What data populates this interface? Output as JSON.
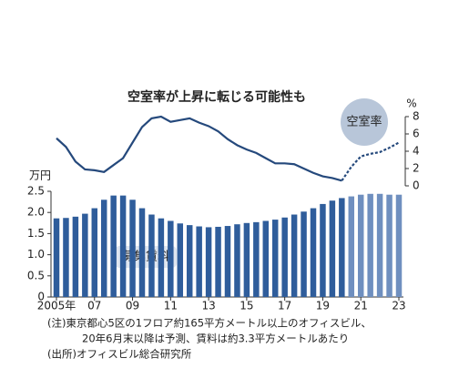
{
  "chart_data": [
    {
      "type": "line",
      "title": "空室率が上昇に転じる可能性も",
      "annotation": "空室率",
      "y_label": "%",
      "x": [
        2005,
        2005.5,
        2006,
        2006.5,
        2007,
        2007.5,
        2008,
        2008.5,
        2009,
        2009.5,
        2010,
        2010.5,
        2011,
        2011.5,
        2012,
        2012.5,
        2013,
        2013.5,
        2014,
        2014.5,
        2015,
        2015.5,
        2016,
        2016.5,
        2017,
        2017.5,
        2018,
        2018.5,
        2019,
        2019.5,
        2020,
        2020.5,
        2021,
        2021.5,
        2022,
        2022.5,
        2023
      ],
      "values": [
        5.5,
        4.5,
        2.8,
        1.9,
        1.8,
        1.6,
        2.4,
        3.2,
        5.0,
        6.8,
        7.8,
        8.0,
        7.4,
        7.6,
        7.8,
        7.3,
        6.9,
        6.3,
        5.4,
        4.7,
        4.2,
        3.8,
        3.2,
        2.6,
        2.6,
        2.5,
        2.0,
        1.5,
        1.1,
        0.9,
        0.6,
        2.2,
        3.4,
        3.7,
        3.9,
        4.4,
        5.0
      ],
      "forecast_from": 2020.5,
      "color": "#25497c",
      "xlim": [
        2005,
        2023
      ],
      "ylim": [
        0,
        8
      ],
      "yticks": [
        0,
        2,
        4,
        6,
        8
      ]
    },
    {
      "type": "bar",
      "annotation": "募集賃料",
      "y_label": "万円",
      "x": [
        2005,
        2005.5,
        2006,
        2006.5,
        2007,
        2007.5,
        2008,
        2008.5,
        2009,
        2009.5,
        2010,
        2010.5,
        2011,
        2011.5,
        2012,
        2012.5,
        2013,
        2013.5,
        2014,
        2014.5,
        2015,
        2015.5,
        2016,
        2016.5,
        2017,
        2017.5,
        2018,
        2018.5,
        2019,
        2019.5,
        2020,
        2020.5,
        2021,
        2021.5,
        2022,
        2022.5,
        2023
      ],
      "values": [
        1.86,
        1.87,
        1.9,
        1.97,
        2.1,
        2.3,
        2.4,
        2.4,
        2.3,
        2.1,
        1.95,
        1.86,
        1.8,
        1.74,
        1.7,
        1.67,
        1.65,
        1.66,
        1.68,
        1.72,
        1.75,
        1.77,
        1.8,
        1.83,
        1.88,
        1.95,
        2.02,
        2.1,
        2.2,
        2.28,
        2.34,
        2.38,
        2.42,
        2.44,
        2.44,
        2.42,
        2.42
      ],
      "forecast_from": 2020.5,
      "color": "#2f5d9b",
      "forecast_color": "#6f8fbf",
      "xlim": [
        2005,
        2023
      ],
      "ylim": [
        0,
        2.5
      ],
      "yticks": [
        0,
        0.5,
        {
          "value": 1,
          "label": "1.0"
        },
        1.5,
        {
          "value": 2,
          "label": "2.0"
        },
        2.5
      ],
      "xticks": [
        {
          "value": 2005,
          "label": "2005年"
        },
        {
          "value": 2007,
          "label": "07"
        },
        {
          "value": 2009,
          "label": "09"
        },
        {
          "value": 2011,
          "label": "11"
        },
        {
          "value": 2013,
          "label": "13"
        },
        {
          "value": 2015,
          "label": "15"
        },
        {
          "value": 2017,
          "label": "17"
        },
        {
          "value": 2019,
          "label": "19"
        },
        {
          "value": 2021,
          "label": "21"
        },
        {
          "value": 2023,
          "label": "23"
        }
      ]
    }
  ],
  "notes": [
    "(注)東京都心5区の1フロア約165平方メートル以上のオフィスビル、",
    "20年6月末以降は予測、賃料は約3.3平方メートルあたり",
    "(出所)オフィスビル総合研究所"
  ]
}
